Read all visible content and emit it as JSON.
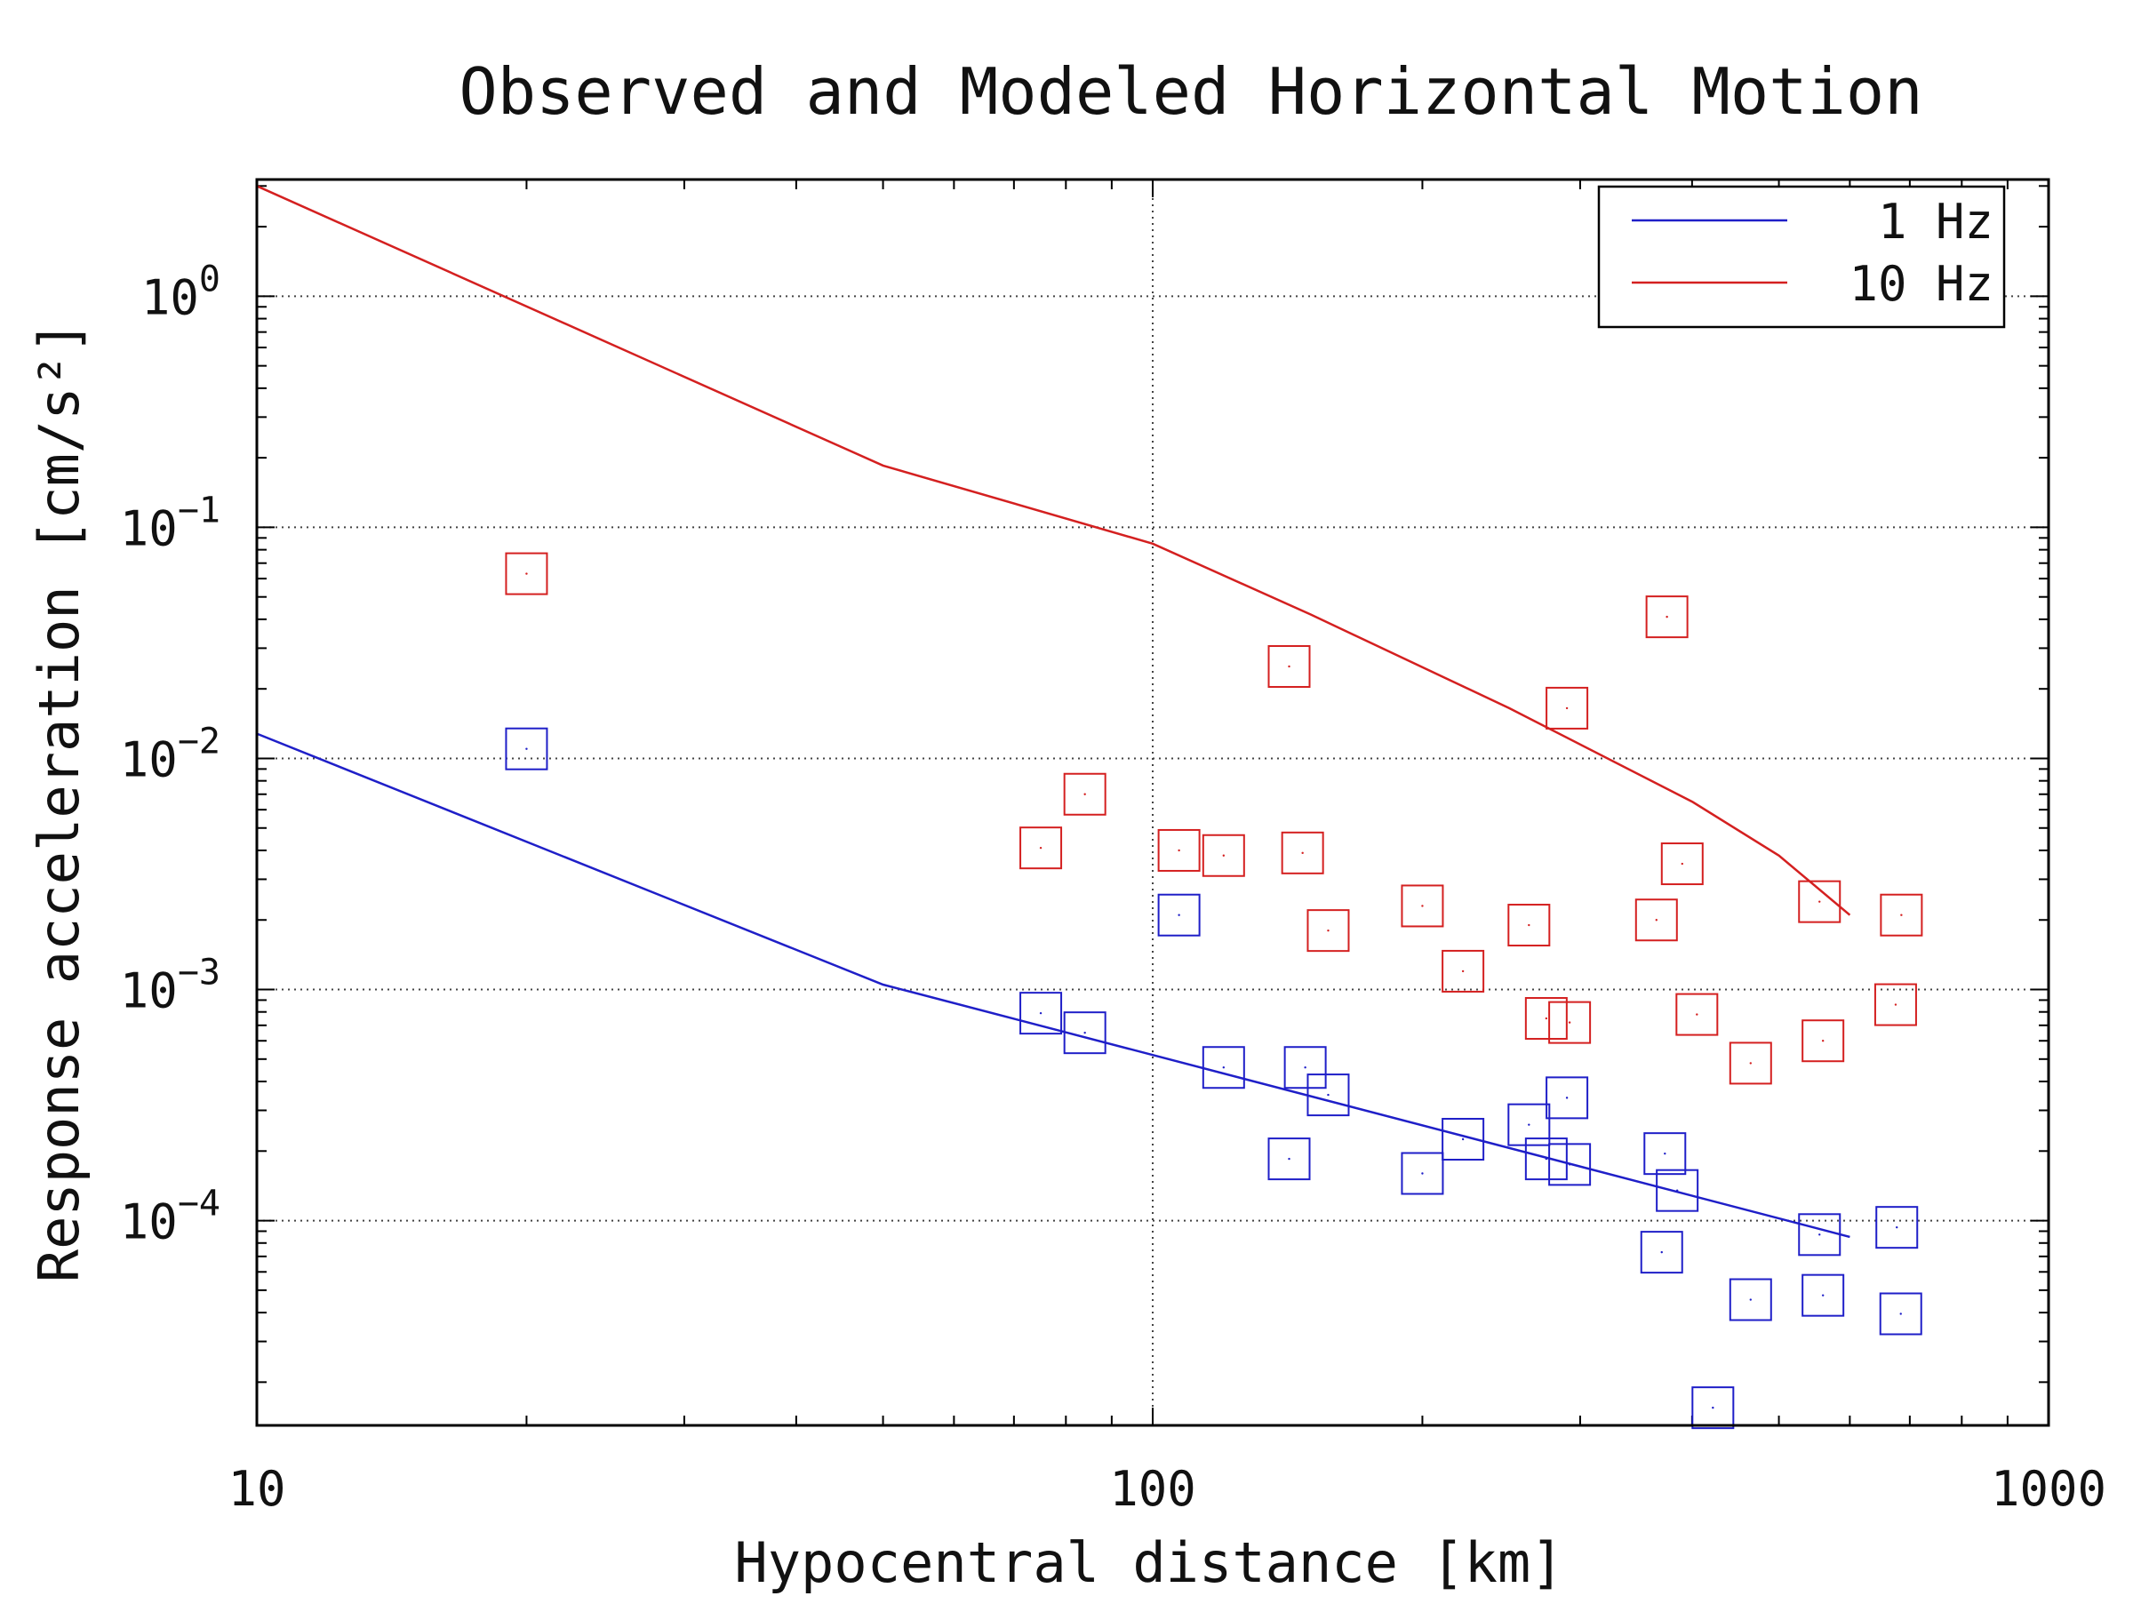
{
  "chart_data": {
    "type": "scatter",
    "title": "Observed and Modeled Horizontal Motion",
    "xlabel": "Hypocentral distance [km]",
    "ylabel": "Response acceleration [cm/s²]",
    "x_scale": "log",
    "y_scale": "log",
    "xlim": [
      10,
      1000
    ],
    "ylim": [
      1.3e-05,
      3.2
    ],
    "x_ticks": [
      {
        "value": 10,
        "label": "10"
      },
      {
        "value": 100,
        "label": "100"
      },
      {
        "value": 1000,
        "label": "1000"
      }
    ],
    "y_ticks": [
      {
        "value": 1,
        "base": "10",
        "exp": "0"
      },
      {
        "value": 0.1,
        "base": "10",
        "exp": "−1"
      },
      {
        "value": 0.01,
        "base": "10",
        "exp": "−2"
      },
      {
        "value": 0.001,
        "base": "10",
        "exp": "−3"
      },
      {
        "value": 0.0001,
        "base": "10",
        "exp": "−4"
      }
    ],
    "grid": "dotted at major ticks",
    "legend_position": "top-right",
    "colors": {
      "blue": "#1f1fc8",
      "red": "#d42020"
    },
    "series": [
      {
        "name": "1 Hz",
        "color": "#1f1fc8",
        "type": "line",
        "x": [
          10,
          50,
          600
        ],
        "y": [
          0.0128,
          0.00105,
          8.5e-05
        ]
      },
      {
        "name": "10 Hz",
        "color": "#d42020",
        "type": "line",
        "x": [
          10,
          50,
          100,
          150,
          250,
          400,
          500,
          600
        ],
        "y": [
          3.0,
          0.185,
          0.085,
          0.042,
          0.0165,
          0.0065,
          0.0038,
          0.0021
        ]
      },
      {
        "color": "#1f1fc8",
        "type": "scatter",
        "marker": "square",
        "x": [
          20,
          75,
          84,
          107,
          120,
          148,
          157,
          142,
          200,
          222,
          263,
          275,
          292,
          290,
          370,
          385,
          373,
          422,
          465,
          560,
          555,
          677,
          684
        ],
        "y": [
          0.011,
          0.00079,
          0.00065,
          0.0021,
          0.00046,
          0.00046,
          0.00035,
          0.000185,
          0.00016,
          0.000225,
          0.00026,
          0.000185,
          0.000175,
          0.00034,
          7.3e-05,
          0.000135,
          0.000195,
          1.55e-05,
          4.55e-05,
          4.75e-05,
          8.7e-05,
          9.35e-05,
          3.95e-05
        ]
      },
      {
        "color": "#d42020",
        "type": "scatter",
        "marker": "square",
        "x": [
          20,
          75,
          84,
          107,
          120,
          142,
          147,
          157,
          200,
          222,
          263,
          275,
          292,
          290,
          365,
          375,
          390,
          405,
          465,
          560,
          555,
          675,
          685
        ],
        "y": [
          0.063,
          0.0041,
          0.007,
          0.004,
          0.0038,
          0.025,
          0.0039,
          0.0018,
          0.0023,
          0.0012,
          0.0019,
          0.00075,
          0.00072,
          0.0165,
          0.002,
          0.041,
          0.0035,
          0.00078,
          0.00048,
          0.0006,
          0.0024,
          0.00086,
          0.0021
        ]
      }
    ]
  }
}
